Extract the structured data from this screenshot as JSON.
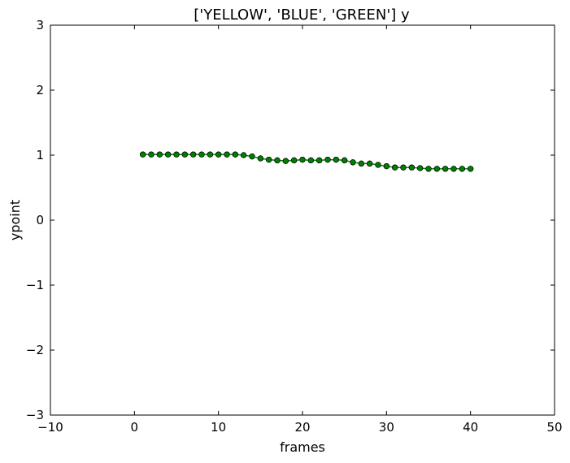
{
  "chart_data": {
    "type": "line",
    "title": "['YELLOW', 'BLUE', 'GREEN'] y",
    "xlabel": "frames",
    "ylabel": "ypoint",
    "xlim": [
      -10,
      50
    ],
    "ylim": [
      -3,
      3
    ],
    "x_ticks": [
      -10,
      0,
      10,
      20,
      30,
      40,
      50
    ],
    "y_ticks": [
      -3,
      -2,
      -1,
      0,
      1,
      2,
      3
    ],
    "x_tick_labels": [
      "−10",
      "0",
      "10",
      "20",
      "30",
      "40",
      "50"
    ],
    "y_tick_labels": [
      "−3",
      "−2",
      "−1",
      "0",
      "1",
      "2",
      "3"
    ],
    "grid": false,
    "legend": "none",
    "x": [
      1,
      2,
      3,
      4,
      5,
      6,
      7,
      8,
      9,
      10,
      11,
      12,
      13,
      14,
      15,
      16,
      17,
      18,
      19,
      20,
      21,
      22,
      23,
      24,
      25,
      26,
      27,
      28,
      29,
      30,
      31,
      32,
      33,
      34,
      35,
      36,
      37,
      38,
      39,
      40
    ],
    "series": [
      {
        "color": "#ffff00",
        "marker_color": "#00007f",
        "values": [
          1.01,
          1.01,
          1.01,
          1.01,
          1.01,
          1.01,
          1.01,
          1.01,
          1.01,
          1.01,
          1.01,
          1.01,
          1.0,
          0.98,
          0.95,
          0.93,
          0.92,
          0.91,
          0.92,
          0.93,
          0.92,
          0.92,
          0.93,
          0.93,
          0.92,
          0.89,
          0.87,
          0.87,
          0.85,
          0.83,
          0.81,
          0.81,
          0.81,
          0.8,
          0.79,
          0.79,
          0.79,
          0.79,
          0.79,
          0.79
        ]
      },
      {
        "color": "#0000ff",
        "marker_color": "#0000ff",
        "values": [
          1.01,
          1.01,
          1.01,
          1.01,
          1.01,
          1.01,
          1.01,
          1.01,
          1.01,
          1.01,
          1.01,
          1.01,
          1.0,
          0.98,
          0.95,
          0.93,
          0.92,
          0.91,
          0.92,
          0.93,
          0.92,
          0.92,
          0.93,
          0.93,
          0.92,
          0.89,
          0.87,
          0.87,
          0.85,
          0.83,
          0.81,
          0.81,
          0.81,
          0.8,
          0.79,
          0.79,
          0.79,
          0.79,
          0.79,
          0.79
        ]
      },
      {
        "color": "#008000",
        "marker_color": "#008000",
        "values": [
          1.01,
          1.01,
          1.01,
          1.01,
          1.01,
          1.01,
          1.01,
          1.01,
          1.01,
          1.01,
          1.01,
          1.01,
          1.0,
          0.98,
          0.95,
          0.93,
          0.92,
          0.91,
          0.92,
          0.93,
          0.92,
          0.92,
          0.93,
          0.93,
          0.92,
          0.89,
          0.87,
          0.87,
          0.85,
          0.83,
          0.81,
          0.81,
          0.81,
          0.8,
          0.79,
          0.79,
          0.79,
          0.79,
          0.79,
          0.79
        ]
      }
    ]
  }
}
